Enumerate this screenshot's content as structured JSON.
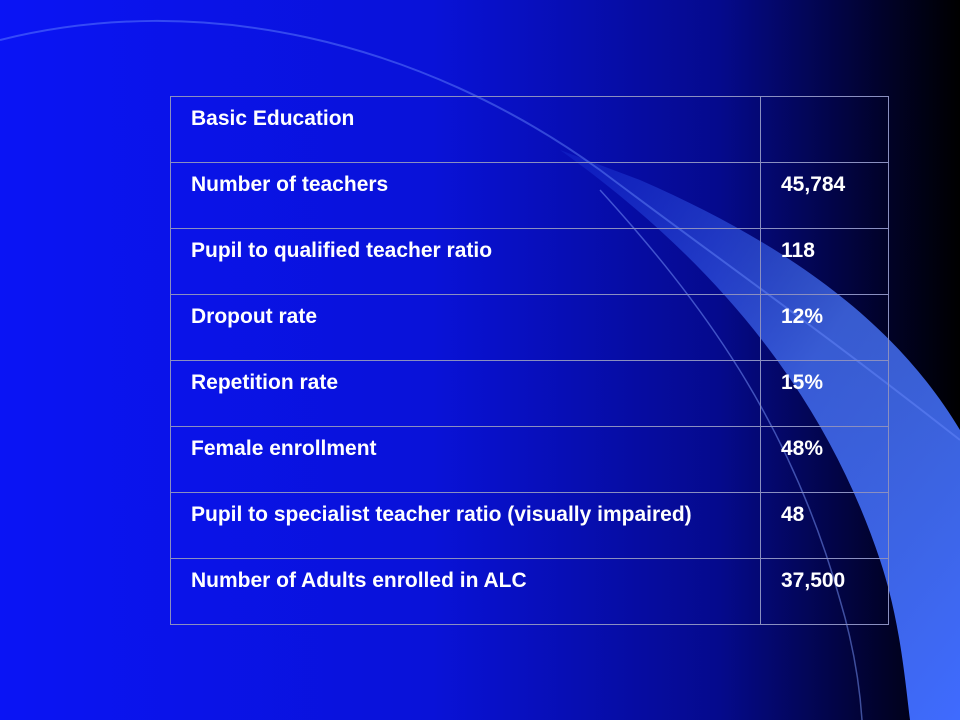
{
  "table": {
    "rows": [
      {
        "label": "Basic Education",
        "value": ""
      },
      {
        "label": "Number of teachers",
        "value": "45,784"
      },
      {
        "label": "Pupil to qualified teacher ratio",
        "value": "118"
      },
      {
        "label": "Dropout rate",
        "value": "12%"
      },
      {
        "label": "Repetition rate",
        "value": "15%"
      },
      {
        "label": "Female enrollment",
        "value": "48%"
      },
      {
        "label": "Pupil to specialist teacher ratio (visually impaired)",
        "value": "48"
      },
      {
        "label": "Number of Adults enrolled in ALC",
        "value": "37,500"
      }
    ]
  },
  "colors": {
    "background_start": "#0a14f5",
    "background_end": "#000000",
    "wave_light": "#3f6bff",
    "text": "#ffffff",
    "grid": "#8a8fc0"
  }
}
